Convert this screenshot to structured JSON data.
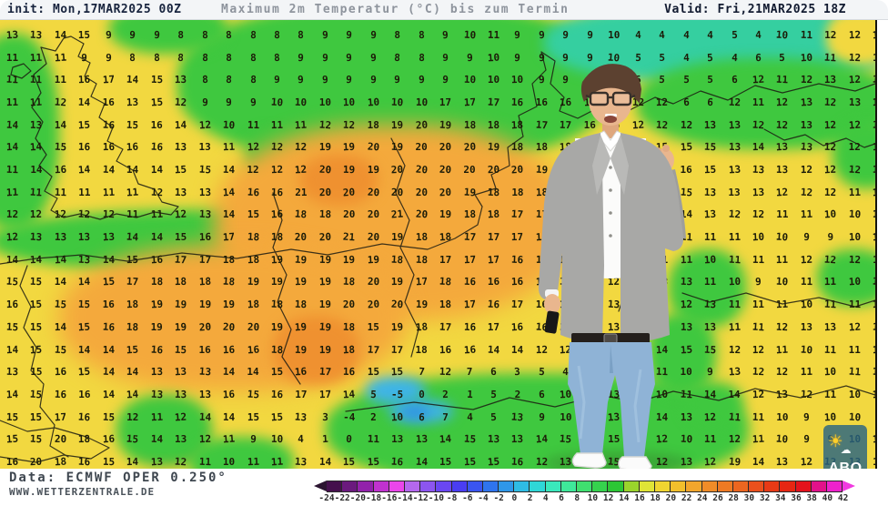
{
  "header": {
    "init": "init: Mon,17MAR2025 00Z",
    "title": "Maximum 2m Temperatur (°C) bis zum Termin",
    "valid": "Valid: Fri,21MAR2025 18Z"
  },
  "footer": {
    "data_source": "Data: ECMWF OPER 0.250°",
    "website": "WWW.WETTERZENTRALE.DE"
  },
  "abo": {
    "label": "ABO",
    "sun_icon": "☀",
    "cloud_icon": "☁"
  },
  "palette": {
    "map_yellow": "#f2d840",
    "map_green": "#3fc83f",
    "map_teal": "#35cfa0",
    "map_orange": "#f4a93c",
    "map_deep_orange": "#ef9130",
    "map_cyan": "#3fb4e8",
    "header_text": "#18243e",
    "title_text": "#8e949d"
  },
  "scale": {
    "unit": "°C",
    "labels": [
      "-24",
      "-22",
      "-20",
      "-18",
      "-16",
      "-14",
      "-12",
      "-10",
      "-8",
      "-6",
      "-4",
      "-2",
      "0",
      "2",
      "4",
      "6",
      "8",
      "10",
      "12",
      "14",
      "16",
      "18",
      "20",
      "22",
      "24",
      "26",
      "28",
      "30",
      "32",
      "34",
      "36",
      "38",
      "40",
      "42"
    ],
    "colors": [
      "#45104d",
      "#6b1a7e",
      "#9222ab",
      "#c032cf",
      "#ea46ea",
      "#b468ee",
      "#8c55f0",
      "#6a46f2",
      "#4a3df2",
      "#3a55f0",
      "#2f74ee",
      "#2f97e8",
      "#2fbce4",
      "#2fd7d7",
      "#3ae8bc",
      "#3fe89a",
      "#3fdf6f",
      "#35d24d",
      "#2cc635",
      "#9ad42c",
      "#e0e436",
      "#f0d531",
      "#f2bf2c",
      "#f2a62c",
      "#f08c28",
      "#ee7a24",
      "#ec6620",
      "#ea501c",
      "#e83a16",
      "#e62612",
      "#e4121c",
      "#e2128a",
      "#ee22cc"
    ]
  },
  "map": {
    "rows": [
      "13 13 14 15 9 9 9 8 8 8 8 8 8 9 9 9 8 8 9 10 11 9 9 9 9 10 4 4 4 4 5 4 10 11 12 12 13",
      "11 11 11 9 9 8 8 8 8 8 8 8 9 9 9 9 8 8 9 9 10 9 9 9 9 10 5 5 4 5 4 6 5 10 11 12 12",
      "11 11 11 16 17 14 15 13 8 8 8 9 9 9 9 9 9 9 9 10 10 10 9 9 9 5 5 5 5 5 6 12 11 12 13 12 13",
      "11 11 12 14 16 13 15 12 9 9 9 10 10 10 10 10 10 10 17 17 17 16 16 16 15 11 12 12 6 6 12 11 12 13 12 13 13",
      "14 13 14 15 16 15 16 14 12 10 11 11 11 12 12 18 19 20 19 18 18 18 17 17 16 16 12 12 12 13 13 12 12 13 12 12 13",
      "14 14 15 16 16 16 16 13 13 11 12 12 12 19 19 20 19 20 20 20 19 18 18 18 19 19 16 15 15 15 13 14 13 13 12 12 12",
      "11 14 16 14 14 14 14 15 15 14 12 12 12 20 19 19 20 20 20 20 20 20 19 19 18 19 19 16 16 15 13 13 13 12 12 12 13",
      "11 11 11 11 11 11 12 13 13 14 16 16 21 20 20 20 20 20 20 19 18 18 18 18 18 16 16 15 15 13 13 13 12 12 12 11 11",
      "12 12 12 12 12 11 11 12 13 14 15 16 18 18 20 20 21 20 19 18 18 17 17 17 17 16 16 15 14 13 12 12 11 11 10 10 10",
      "12 13 13 13 13 14 14 15 16 17 18 18 20 20 21 20 19 18 18 17 17 17 16 16 16 15 14 14 11 11 11 10 10 9 9 10 10",
      "14 14 14 13 14 15 16 17 17 18 18 19 19 19 19 19 18 18 17 17 17 16 16 16 15 14 11 11 11 10 11 11 11 12 12 12 11",
      "15 15 14 14 15 17 18 18 18 18 19 19 19 19 18 20 19 17 18 16 16 16 15 14 13 12 12 13 13 11 10 9 10 11 11 10 11",
      "16 15 15 15 16 18 19 19 19 19 18 18 18 19 20 20 20 19 18 17 16 17 16 16 16 13 13 13 12 13 11 11 11 10 11 11 10",
      "15 15 14 15 16 18 19 19 20 20 20 19 19 19 18 15 19 18 17 16 17 16 16 15 14 13 10 13 13 13 11 11 12 13 13 12 13",
      "14 15 15 14 14 15 16 15 16 16 16 18 19 19 18 17 17 18 16 16 14 14 12 12 14 14 14 14 15 15 12 12 11 10 11 11 12",
      "13 15 16 15 14 14 13 13 13 14 14 15 16 17 16 15 15 7 12 7 6 3 5 4 6 10 4 11 10 9 13 12 12 11 10 11 10",
      "14 15 16 16 14 14 13 13 13 16 15 16 17 17 14 5 -5 0 2 1 5 2 6 10 4 13 9 10 11 14 14 12 13 12 11 10 10",
      "15 15 17 16 15 12 11 12 14 14 15 15 13 3 -4 2 10 6 7 4 5 13 9 10 14 13 13 14 13 12 11 11 10 9 10 10 9",
      "15 15 20 18 16 15 14 13 12 11 9 10 4 1 0 11 13 13 14 15 13 13 14 15 15 15 16 12 10 11 12 11 10 9 9 10 10",
      "16 20 18 16 15 14 13 12 11 10 11 11 13 14 15 15 16 14 15 15 15 16 12 13 14 15 16 12 13 12 19 14 13 12 12 13 14"
    ]
  },
  "presenter": {
    "description": "weather presenter, gray blazer, white shirt, light blue jeans, white sneakers, glasses"
  }
}
